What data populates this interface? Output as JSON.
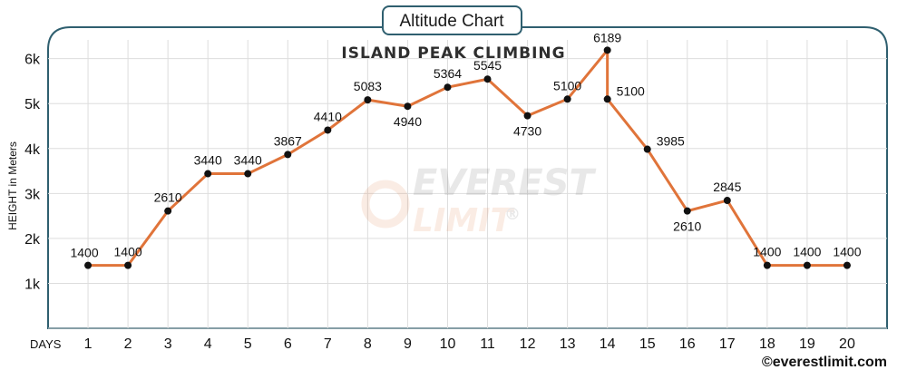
{
  "badge": {
    "label": "Altitude Chart"
  },
  "watermark": {
    "line1": "EVEREST",
    "line2": "LIMIT",
    "mark": "®"
  },
  "credit": {
    "text": "©everestlimit.com"
  },
  "colors": {
    "line": "#e0743a",
    "point": "#111111",
    "frame": "#2f5f6f",
    "grid": "#dddddd"
  },
  "chart_data": {
    "type": "line",
    "title": "ISLAND PEAK CLIMBING",
    "xlabel": "DAYS",
    "ylabel": "HEIGHT in Meters",
    "x": [
      1,
      2,
      3,
      4,
      5,
      6,
      7,
      8,
      9,
      10,
      11,
      12,
      13,
      14,
      14,
      15,
      16,
      17,
      18,
      19,
      20
    ],
    "y": [
      1400,
      1400,
      2610,
      3440,
      3440,
      3867,
      4410,
      5083,
      4940,
      5364,
      5545,
      4730,
      5100,
      6189,
      5100,
      3985,
      2610,
      2845,
      1400,
      1400,
      1400
    ],
    "x_ticks": [
      "1",
      "2",
      "3",
      "4",
      "5",
      "6",
      "7",
      "8",
      "9",
      "10",
      "11",
      "12",
      "13",
      "14",
      "15",
      "16",
      "17",
      "18",
      "19",
      "20"
    ],
    "y_ticks": [
      {
        "value": 1000,
        "label": "1k"
      },
      {
        "value": 2000,
        "label": "2k"
      },
      {
        "value": 3000,
        "label": "3k"
      },
      {
        "value": 4000,
        "label": "4k"
      },
      {
        "value": 5000,
        "label": "5k"
      },
      {
        "value": 6000,
        "label": "6k"
      }
    ],
    "data_labels": [
      "1400",
      "1400",
      "2610",
      "3440",
      "3440",
      "3867",
      "4410",
      "5083",
      "4940",
      "5364",
      "5545",
      "4730",
      "5100",
      "6189",
      "5100",
      "3985",
      "2610",
      "2845",
      "1400",
      "1400",
      "1400"
    ],
    "xlim": [
      0,
      21
    ],
    "ylim": [
      0,
      6700
    ],
    "grid": true,
    "legend": "none"
  }
}
